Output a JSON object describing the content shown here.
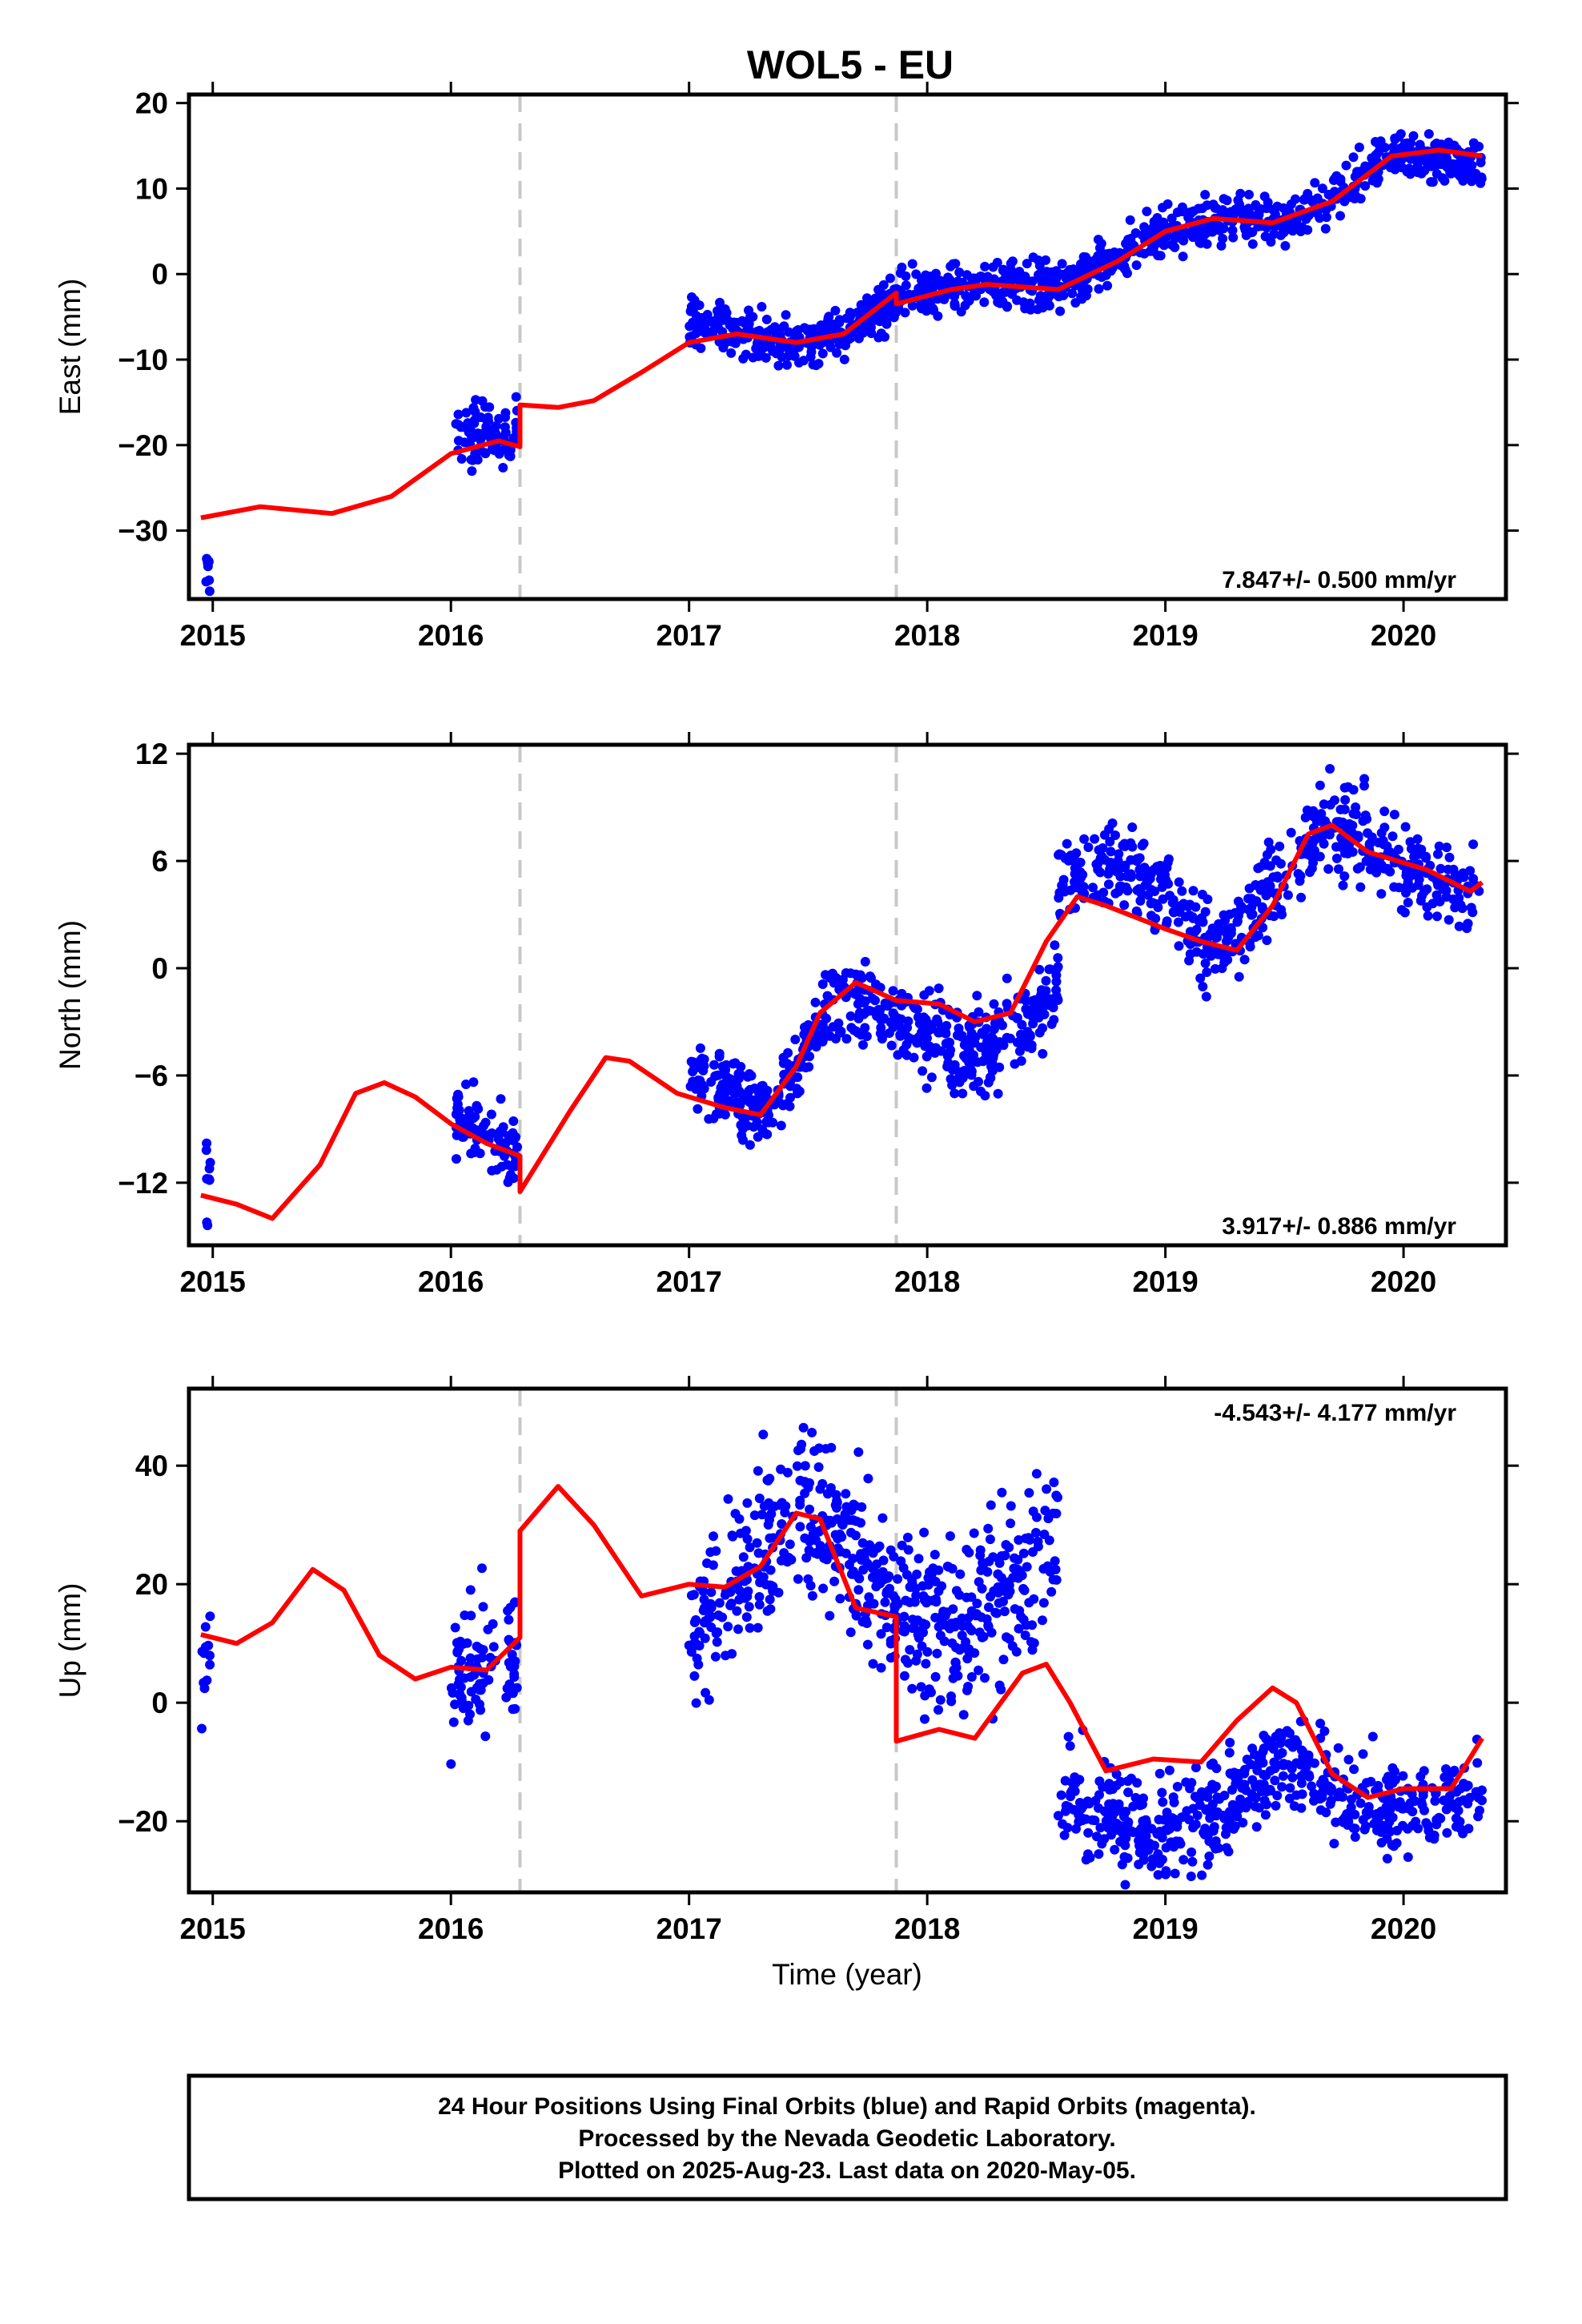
{
  "title": "WOL5 - EU",
  "xlabel": "Time (year)",
  "x_ticks": [
    2015,
    2016,
    2017,
    2018,
    2019,
    2020
  ],
  "colors": {
    "data": "#0000ff",
    "model": "#ff0000",
    "event": "#c8c8c8"
  },
  "footer": {
    "line1": "24 Hour Positions Using Final Orbits (blue) and Rapid Orbits (magenta).",
    "line2": "Processed by the Nevada Geodetic Laboratory.",
    "line3": "Plotted on 2025-Aug-23. Last data on 2020-May-05."
  },
  "chart_data": [
    {
      "type": "scatter",
      "ylabel": "East (mm)",
      "rate_label": "7.847+/- 0.500 mm/yr",
      "rate_position": "bottom-right",
      "xlim": [
        2014.9,
        2020.43
      ],
      "ylim": [
        -38,
        21
      ],
      "yticks": [
        -30,
        -20,
        -10,
        0,
        10,
        20
      ],
      "event_lines": [
        2016.29,
        2017.87
      ],
      "model_line": [
        [
          2014.95,
          -28.5
        ],
        [
          2015.2,
          -27.2
        ],
        [
          2015.5,
          -28.0
        ],
        [
          2015.75,
          -26.0
        ],
        [
          2016.0,
          -21.0
        ],
        [
          2016.2,
          -19.5
        ],
        [
          2016.29,
          -20.2
        ],
        [
          2016.29,
          -15.3
        ],
        [
          2016.45,
          -15.6
        ],
        [
          2016.6,
          -14.8
        ],
        [
          2016.8,
          -11.5
        ],
        [
          2017.0,
          -8.0
        ],
        [
          2017.2,
          -7.0
        ],
        [
          2017.45,
          -8.0
        ],
        [
          2017.65,
          -7.0
        ],
        [
          2017.87,
          -2.2
        ],
        [
          2017.87,
          -3.5
        ],
        [
          2018.1,
          -1.8
        ],
        [
          2018.25,
          -1.2
        ],
        [
          2018.55,
          -1.8
        ],
        [
          2018.8,
          1.5
        ],
        [
          2019.0,
          5.0
        ],
        [
          2019.2,
          6.5
        ],
        [
          2019.45,
          6.0
        ],
        [
          2019.7,
          8.5
        ],
        [
          2019.95,
          13.8
        ],
        [
          2020.15,
          14.5
        ],
        [
          2020.33,
          13.8
        ]
      ],
      "data_clusters": [
        {
          "x_range": [
            2014.97,
            2014.99
          ],
          "n": 10,
          "trend": [
            [
              2014.97,
              -35.5
            ],
            [
              2014.99,
              -35.5
            ]
          ],
          "spread": 1.8
        },
        {
          "x_range": [
            2016.02,
            2016.28
          ],
          "n": 90,
          "trend": [
            [
              2016.02,
              -19
            ],
            [
              2016.28,
              -18.5
            ]
          ],
          "spread": 1.8
        },
        {
          "x_range": [
            2017.0,
            2017.87
          ],
          "n": 300,
          "trend": [
            [
              2017.0,
              -5
            ],
            [
              2017.2,
              -7
            ],
            [
              2017.45,
              -8.3
            ],
            [
              2017.65,
              -6.5
            ],
            [
              2017.87,
              -3
            ]
          ],
          "spread": 1.4
        },
        {
          "x_range": [
            2017.87,
            2020.33
          ],
          "n": 750,
          "trend": [
            [
              2017.87,
              -2.5
            ],
            [
              2018.2,
              -1.5
            ],
            [
              2018.55,
              -1.5
            ],
            [
              2018.8,
              2
            ],
            [
              2019.0,
              5
            ],
            [
              2019.3,
              6.5
            ],
            [
              2019.5,
              6
            ],
            [
              2019.7,
              9
            ],
            [
              2019.95,
              14.5
            ],
            [
              2020.33,
              12.5
            ]
          ],
          "spread": 1.4
        }
      ]
    },
    {
      "type": "scatter",
      "ylabel": "North (mm)",
      "rate_label": "3.917+/- 0.886 mm/yr",
      "rate_position": "bottom-right",
      "xlim": [
        2014.9,
        2020.43
      ],
      "ylim": [
        -15.5,
        12.5
      ],
      "yticks": [
        -12,
        -6,
        0,
        6,
        12
      ],
      "event_lines": [
        2016.29,
        2017.87
      ],
      "model_line": [
        [
          2014.95,
          -12.7
        ],
        [
          2015.1,
          -13.2
        ],
        [
          2015.25,
          -14.0
        ],
        [
          2015.45,
          -11.0
        ],
        [
          2015.6,
          -7.0
        ],
        [
          2015.72,
          -6.4
        ],
        [
          2015.85,
          -7.2
        ],
        [
          2016.0,
          -8.7
        ],
        [
          2016.15,
          -9.8
        ],
        [
          2016.29,
          -10.5
        ],
        [
          2016.29,
          -12.5
        ],
        [
          2016.5,
          -8.0
        ],
        [
          2016.65,
          -5.0
        ],
        [
          2016.75,
          -5.2
        ],
        [
          2016.95,
          -7.0
        ],
        [
          2017.15,
          -7.8
        ],
        [
          2017.3,
          -8.2
        ],
        [
          2017.45,
          -5.5
        ],
        [
          2017.55,
          -2.5
        ],
        [
          2017.7,
          -0.8
        ],
        [
          2017.87,
          -1.8
        ],
        [
          2018.05,
          -2.0
        ],
        [
          2018.2,
          -3.0
        ],
        [
          2018.35,
          -2.5
        ],
        [
          2018.5,
          1.5
        ],
        [
          2018.63,
          4.0
        ],
        [
          2018.75,
          3.5
        ],
        [
          2019.0,
          2.2
        ],
        [
          2019.15,
          1.5
        ],
        [
          2019.3,
          1.0
        ],
        [
          2019.45,
          3.5
        ],
        [
          2019.6,
          7.5
        ],
        [
          2019.7,
          8.0
        ],
        [
          2019.85,
          6.5
        ],
        [
          2020.1,
          5.5
        ],
        [
          2020.28,
          4.3
        ],
        [
          2020.33,
          4.8
        ]
      ],
      "data_clusters": [
        {
          "x_range": [
            2014.97,
            2014.99
          ],
          "n": 10,
          "trend": [
            [
              2014.97,
              -12.5
            ],
            [
              2014.99,
              -12.5
            ]
          ],
          "spread": 1.3
        },
        {
          "x_range": [
            2016.02,
            2016.28
          ],
          "n": 90,
          "trend": [
            [
              2016.02,
              -8.5
            ],
            [
              2016.28,
              -10.3
            ]
          ],
          "spread": 0.9
        },
        {
          "x_range": [
            2017.0,
            2017.87
          ],
          "n": 300,
          "trend": [
            [
              2017.0,
              -6.2
            ],
            [
              2017.2,
              -7.0
            ],
            [
              2017.35,
              -8.0
            ],
            [
              2017.5,
              -4.0
            ],
            [
              2017.65,
              -1.5
            ],
            [
              2017.87,
              -3.0
            ]
          ],
          "spread": 1.0
        },
        {
          "x_range": [
            2017.87,
            2018.55
          ],
          "n": 260,
          "trend": [
            [
              2017.87,
              -3.0
            ],
            [
              2018.05,
              -3.8
            ],
            [
              2018.2,
              -5.0
            ],
            [
              2018.4,
              -3.5
            ],
            [
              2018.55,
              -0.5
            ]
          ],
          "spread": 1.2
        },
        {
          "x_range": [
            2018.55,
            2020.33
          ],
          "n": 550,
          "trend": [
            [
              2018.55,
              5.2
            ],
            [
              2018.8,
              5.5
            ],
            [
              2019.0,
              4.5
            ],
            [
              2019.15,
              1.5
            ],
            [
              2019.3,
              2.0
            ],
            [
              2019.5,
              5.5
            ],
            [
              2019.65,
              8.0
            ],
            [
              2019.8,
              7.5
            ],
            [
              2020.0,
              5.5
            ],
            [
              2020.33,
              4.0
            ]
          ],
          "spread": 1.2
        }
      ]
    },
    {
      "type": "scatter",
      "ylabel": "Up (mm)",
      "rate_label": "-4.543+/- 4.177 mm/yr",
      "rate_position": "top-right",
      "xlim": [
        2014.9,
        2020.43
      ],
      "ylim": [
        -32,
        53
      ],
      "yticks": [
        -20,
        0,
        20,
        40
      ],
      "event_lines": [
        2016.29,
        2017.87
      ],
      "model_line": [
        [
          2014.95,
          11.5
        ],
        [
          2015.1,
          10.0
        ],
        [
          2015.25,
          13.5
        ],
        [
          2015.42,
          22.5
        ],
        [
          2015.55,
          19.0
        ],
        [
          2015.7,
          8.0
        ],
        [
          2015.85,
          4.0
        ],
        [
          2016.0,
          6.0
        ],
        [
          2016.15,
          5.5
        ],
        [
          2016.29,
          11.0
        ],
        [
          2016.29,
          29.0
        ],
        [
          2016.45,
          36.5
        ],
        [
          2016.6,
          30.0
        ],
        [
          2016.8,
          18.0
        ],
        [
          2017.0,
          20.0
        ],
        [
          2017.15,
          19.5
        ],
        [
          2017.3,
          23.0
        ],
        [
          2017.45,
          32.0
        ],
        [
          2017.55,
          31.0
        ],
        [
          2017.7,
          16.0
        ],
        [
          2017.87,
          14.5
        ],
        [
          2017.87,
          -6.5
        ],
        [
          2018.05,
          -4.5
        ],
        [
          2018.2,
          -6.0
        ],
        [
          2018.4,
          5.0
        ],
        [
          2018.5,
          6.5
        ],
        [
          2018.6,
          0.0
        ],
        [
          2018.75,
          -11.5
        ],
        [
          2018.95,
          -9.5
        ],
        [
          2019.15,
          -10.0
        ],
        [
          2019.3,
          -3.0
        ],
        [
          2019.45,
          2.5
        ],
        [
          2019.55,
          0.0
        ],
        [
          2019.7,
          -12.0
        ],
        [
          2019.85,
          -16.0
        ],
        [
          2020.0,
          -14.5
        ],
        [
          2020.2,
          -14.5
        ],
        [
          2020.33,
          -6.0
        ]
      ],
      "data_clusters": [
        {
          "x_range": [
            2014.95,
            2014.99
          ],
          "n": 12,
          "trend": [
            [
              2014.95,
              6.0
            ],
            [
              2014.99,
              6.0
            ]
          ],
          "spread": 4.5
        },
        {
          "x_range": [
            2016.0,
            2016.28
          ],
          "n": 90,
          "trend": [
            [
              2016.0,
              3.0
            ],
            [
              2016.15,
              7.0
            ],
            [
              2016.28,
              9.0
            ]
          ],
          "spread": 6.5
        },
        {
          "x_range": [
            2017.0,
            2017.87
          ],
          "n": 320,
          "trend": [
            [
              2017.0,
              10.0
            ],
            [
              2017.2,
              20.0
            ],
            [
              2017.45,
              33.0
            ],
            [
              2017.6,
              30.0
            ],
            [
              2017.87,
              17.0
            ]
          ],
          "spread": 6.5
        },
        {
          "x_range": [
            2017.87,
            2018.55
          ],
          "n": 250,
          "trend": [
            [
              2017.87,
              16.0
            ],
            [
              2018.1,
              13.0
            ],
            [
              2018.3,
              18.0
            ],
            [
              2018.55,
              26.0
            ]
          ],
          "spread": 7.5
        },
        {
          "x_range": [
            2018.55,
            2020.33
          ],
          "n": 560,
          "trend": [
            [
              2018.55,
              -15.0
            ],
            [
              2018.7,
              -17.0
            ],
            [
              2018.95,
              -22.0
            ],
            [
              2019.15,
              -20.0
            ],
            [
              2019.35,
              -14.0
            ],
            [
              2019.5,
              -9.0
            ],
            [
              2019.6,
              -10.0
            ],
            [
              2019.75,
              -17.0
            ],
            [
              2020.0,
              -19.0
            ],
            [
              2020.33,
              -15.0
            ]
          ],
          "spread": 4.0
        }
      ]
    }
  ]
}
